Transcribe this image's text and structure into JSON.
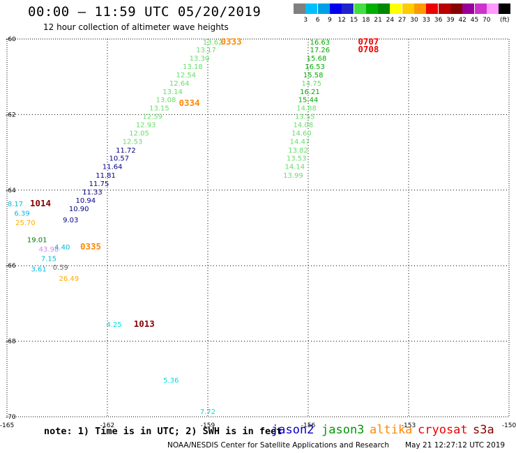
{
  "header": {
    "title": "00:00 – 11:59 UTC 05/20/2019",
    "subtitle": "12 hour collection of altimeter wave heights"
  },
  "colorbar": {
    "colors": [
      "#808080",
      "#00bfff",
      "#00a0e8",
      "#0000ee",
      "#2222cc",
      "#44dd44",
      "#00b000",
      "#008800",
      "#ffff00",
      "#ffcc00",
      "#ff9900",
      "#ee0000",
      "#bb0000",
      "#880000",
      "#990099",
      "#cc33cc",
      "#ff99ff",
      "#000000"
    ],
    "labels": [
      "3",
      "6",
      "9",
      "12",
      "15",
      "18",
      "21",
      "24",
      "27",
      "30",
      "33",
      "36",
      "39",
      "42",
      "45",
      "70"
    ],
    "unit": "(ft)"
  },
  "map": {
    "lon_ticks": [
      "-165",
      "-162",
      "-159",
      "-156",
      "-153",
      "-150"
    ],
    "lat_ticks": [
      "-60",
      "-62",
      "-64",
      "-66",
      "-68",
      "-70"
    ],
    "lon_range": [
      -165,
      -150
    ],
    "lat_range": [
      -70,
      -60
    ],
    "grid": "dotted"
  },
  "colors": {
    "jason2": "#0000cc",
    "jason3": "#009900",
    "altika": "#ff8800",
    "cryosat": "#ee0000",
    "s3a": "#880000",
    "light_green": "#66dd66",
    "green": "#00aa00",
    "dark_green": "#007700",
    "navy": "#000088",
    "cyan": "#00bbdd",
    "orange": "#ffaa00",
    "lilac": "#cc88ee",
    "gray": "#666666",
    "bright_cyan": "#00dddd"
  },
  "wave_points": [
    {
      "value": "13.62",
      "lon": -158.85,
      "lat": -60.07,
      "color": "#66dd66"
    },
    {
      "value": "13.17",
      "lon": -159.05,
      "lat": -60.28,
      "color": "#66dd66"
    },
    {
      "value": "13.30",
      "lon": -159.25,
      "lat": -60.5,
      "color": "#66dd66"
    },
    {
      "value": "13.18",
      "lon": -159.45,
      "lat": -60.72,
      "color": "#66dd66"
    },
    {
      "value": "12.54",
      "lon": -159.65,
      "lat": -60.94,
      "color": "#66dd66"
    },
    {
      "value": "12.64",
      "lon": -159.85,
      "lat": -61.16,
      "color": "#66dd66"
    },
    {
      "value": "13.14",
      "lon": -160.05,
      "lat": -61.38,
      "color": "#66dd66"
    },
    {
      "value": "13.08",
      "lon": -160.25,
      "lat": -61.6,
      "color": "#66dd66"
    },
    {
      "value": "13.15",
      "lon": -160.45,
      "lat": -61.82,
      "color": "#66dd66"
    },
    {
      "value": "12.59",
      "lon": -160.65,
      "lat": -62.04,
      "color": "#66dd66"
    },
    {
      "value": "12.93",
      "lon": -160.85,
      "lat": -62.26,
      "color": "#66dd66"
    },
    {
      "value": "12.05",
      "lon": -161.05,
      "lat": -62.48,
      "color": "#66dd66"
    },
    {
      "value": "12.53",
      "lon": -161.25,
      "lat": -62.7,
      "color": "#66dd66"
    },
    {
      "value": "11.72",
      "lon": -161.45,
      "lat": -62.93,
      "color": "#000088"
    },
    {
      "value": "10.57",
      "lon": -161.65,
      "lat": -63.15,
      "color": "#000088"
    },
    {
      "value": "11.64",
      "lon": -161.85,
      "lat": -63.37,
      "color": "#000088"
    },
    {
      "value": "11.81",
      "lon": -162.05,
      "lat": -63.6,
      "color": "#000088"
    },
    {
      "value": "11.75",
      "lon": -162.25,
      "lat": -63.82,
      "color": "#000088"
    },
    {
      "value": "11.33",
      "lon": -162.45,
      "lat": -64.04,
      "color": "#000088"
    },
    {
      "value": "10.94",
      "lon": -162.65,
      "lat": -64.26,
      "color": "#000088"
    },
    {
      "value": "10.90",
      "lon": -162.85,
      "lat": -64.48,
      "color": "#000088"
    },
    {
      "value": "9.03",
      "lon": -163.1,
      "lat": -64.78,
      "color": "#000088"
    },
    {
      "value": "8.17",
      "lon": -164.75,
      "lat": -64.35,
      "color": "#00bbdd"
    },
    {
      "value": "6.39",
      "lon": -164.55,
      "lat": -64.6,
      "color": "#00bbdd"
    },
    {
      "value": "25.70",
      "lon": -164.45,
      "lat": -64.85,
      "color": "#ffaa00"
    },
    {
      "value": "19.01",
      "lon": -164.1,
      "lat": -65.3,
      "color": "#007700"
    },
    {
      "value": "43.98",
      "lon": -163.75,
      "lat": -65.55,
      "color": "#cc88ee"
    },
    {
      "value": "4.40",
      "lon": -163.35,
      "lat": -65.5,
      "color": "#00bbdd"
    },
    {
      "value": "7.15",
      "lon": -163.75,
      "lat": -65.8,
      "color": "#00bbdd"
    },
    {
      "value": "3.61",
      "lon": -164.05,
      "lat": -66.08,
      "color": "#00bbdd"
    },
    {
      "value": "0.59",
      "lon": -163.4,
      "lat": -66.03,
      "color": "#666666"
    },
    {
      "value": "26.49",
      "lon": -163.15,
      "lat": -66.33,
      "color": "#ffaa00"
    },
    {
      "value": "16.63",
      "lon": -155.65,
      "lat": -60.07,
      "color": "#00aa00"
    },
    {
      "value": "17.26",
      "lon": -155.65,
      "lat": -60.28,
      "color": "#00aa00"
    },
    {
      "value": "15.68",
      "lon": -155.75,
      "lat": -60.5,
      "color": "#00aa00"
    },
    {
      "value": "16.53",
      "lon": -155.8,
      "lat": -60.72,
      "color": "#00aa00"
    },
    {
      "value": "15.58",
      "lon": -155.85,
      "lat": -60.94,
      "color": "#00aa00"
    },
    {
      "value": "14.75",
      "lon": -155.9,
      "lat": -61.16,
      "color": "#66dd66"
    },
    {
      "value": "16.21",
      "lon": -155.95,
      "lat": -61.38,
      "color": "#00aa00"
    },
    {
      "value": "15.44",
      "lon": -156.0,
      "lat": -61.6,
      "color": "#00aa00"
    },
    {
      "value": "14.88",
      "lon": -156.05,
      "lat": -61.82,
      "color": "#66dd66"
    },
    {
      "value": "13.55",
      "lon": -156.1,
      "lat": -62.04,
      "color": "#66dd66"
    },
    {
      "value": "14.08",
      "lon": -156.15,
      "lat": -62.26,
      "color": "#66dd66"
    },
    {
      "value": "14.60",
      "lon": -156.2,
      "lat": -62.48,
      "color": "#66dd66"
    },
    {
      "value": "14.47",
      "lon": -156.25,
      "lat": -62.7,
      "color": "#66dd66"
    },
    {
      "value": "13.82",
      "lon": -156.3,
      "lat": -62.93,
      "color": "#66dd66"
    },
    {
      "value": "13.53",
      "lon": -156.35,
      "lat": -63.15,
      "color": "#66dd66"
    },
    {
      "value": "14.14",
      "lon": -156.4,
      "lat": -63.37,
      "color": "#66dd66"
    },
    {
      "value": "13.99",
      "lon": -156.45,
      "lat": -63.6,
      "color": "#66dd66"
    },
    {
      "value": "4.25",
      "lon": -161.8,
      "lat": -67.55,
      "color": "#00dddd"
    },
    {
      "value": "5.36",
      "lon": -160.1,
      "lat": -69.02,
      "color": "#00dddd"
    },
    {
      "value": "7.72",
      "lon": -159.0,
      "lat": -69.85,
      "color": "#00dddd"
    }
  ],
  "pass_times": [
    {
      "value": "0333",
      "lon": -158.3,
      "lat": -60.07,
      "color": "#ff8800"
    },
    {
      "value": "0334",
      "lon": -159.55,
      "lat": -61.7,
      "color": "#ff8800"
    },
    {
      "value": "0707",
      "lon": -154.2,
      "lat": -60.07,
      "color": "#ee0000"
    },
    {
      "value": "0708",
      "lon": -154.2,
      "lat": -60.28,
      "color": "#ee0000"
    },
    {
      "value": "1014",
      "lon": -164.0,
      "lat": -64.35,
      "color": "#880000"
    },
    {
      "value": "0335",
      "lon": -162.5,
      "lat": -65.5,
      "color": "#ff8800"
    },
    {
      "value": "1013",
      "lon": -160.9,
      "lat": -67.55,
      "color": "#880000"
    }
  ],
  "note": "note: 1) Time is in UTC; 2) SWH is in feet",
  "legend": [
    {
      "name": "jason2",
      "color": "#0000cc"
    },
    {
      "name": "jason3",
      "color": "#009900"
    },
    {
      "name": "altika",
      "color": "#ff8800"
    },
    {
      "name": "cryosat",
      "color": "#ee0000"
    },
    {
      "name": "s3a",
      "color": "#880000"
    }
  ],
  "footer": {
    "credit": "NOAA/NESDIS Center for Satellite Applications and Research",
    "date": "May 21 12:27:12 UTC 2019"
  }
}
